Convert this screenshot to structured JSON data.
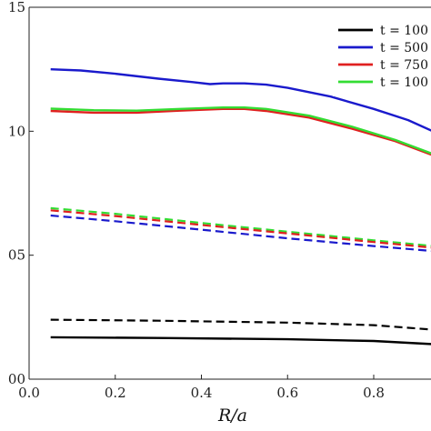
{
  "chart_data": {
    "type": "line",
    "title": "",
    "xlabel": "R/a",
    "ylabel": "",
    "xlim": [
      0,
      0.95
    ],
    "ylim": [
      0,
      1.5
    ],
    "x_ticks": [
      0,
      0.2,
      0.4,
      0.6,
      0.8
    ],
    "x_tick_labels": [
      "0.0",
      "0.2",
      "0.4",
      "0.6",
      "0.8"
    ],
    "y_ticks": [
      0,
      0.5,
      1.0,
      1.5
    ],
    "y_tick_labels": [
      "00",
      "05",
      "10",
      "15"
    ],
    "grid": false,
    "legend_position": "top-right",
    "legend": [
      {
        "label": "t = 100",
        "color": "#000000"
      },
      {
        "label": "t = 500",
        "color": "#1a1acc"
      },
      {
        "label": "t = 750",
        "color": "#e02020"
      },
      {
        "label": "t = 100",
        "color": "#33dd33"
      }
    ],
    "series": [
      {
        "legend_index": 1,
        "color": "#1a1acc",
        "dash": false,
        "x": [
          0.05,
          0.12,
          0.2,
          0.3,
          0.38,
          0.42,
          0.45,
          0.5,
          0.55,
          0.6,
          0.7,
          0.8,
          0.88,
          0.95
        ],
        "y": [
          1.25,
          1.245,
          1.232,
          1.212,
          1.198,
          1.19,
          1.193,
          1.193,
          1.188,
          1.175,
          1.14,
          1.09,
          1.045,
          0.99
        ]
      },
      {
        "legend_index": 2,
        "color": "#e02020",
        "dash": false,
        "x": [
          0.05,
          0.15,
          0.25,
          0.35,
          0.45,
          0.5,
          0.55,
          0.65,
          0.75,
          0.85,
          0.95
        ],
        "y": [
          1.082,
          1.075,
          1.075,
          1.083,
          1.09,
          1.09,
          1.082,
          1.055,
          1.01,
          0.96,
          0.895
        ]
      },
      {
        "legend_index": 3,
        "color": "#33dd33",
        "dash": false,
        "x": [
          0.05,
          0.15,
          0.25,
          0.35,
          0.45,
          0.5,
          0.55,
          0.65,
          0.75,
          0.85,
          0.95
        ],
        "y": [
          1.091,
          1.085,
          1.083,
          1.09,
          1.096,
          1.096,
          1.09,
          1.063,
          1.018,
          0.965,
          0.9
        ]
      },
      {
        "legend_index": 3,
        "color": "#33dd33",
        "dash": true,
        "x": [
          0.05,
          0.2,
          0.4,
          0.6,
          0.8,
          0.95
        ],
        "y": [
          0.69,
          0.667,
          0.63,
          0.595,
          0.56,
          0.535
        ]
      },
      {
        "legend_index": 2,
        "color": "#e02020",
        "dash": true,
        "x": [
          0.05,
          0.2,
          0.4,
          0.6,
          0.8,
          0.95
        ],
        "y": [
          0.681,
          0.658,
          0.622,
          0.588,
          0.553,
          0.528
        ]
      },
      {
        "legend_index": 1,
        "color": "#1a1acc",
        "dash": true,
        "x": [
          0.05,
          0.2,
          0.4,
          0.6,
          0.8,
          0.95
        ],
        "y": [
          0.66,
          0.637,
          0.603,
          0.568,
          0.537,
          0.515
        ]
      },
      {
        "legend_index": 0,
        "color": "#000000",
        "dash": true,
        "x": [
          0.05,
          0.3,
          0.6,
          0.8,
          0.95
        ],
        "y": [
          0.24,
          0.236,
          0.228,
          0.218,
          0.198
        ]
      },
      {
        "legend_index": 0,
        "color": "#000000",
        "dash": false,
        "x": [
          0.05,
          0.3,
          0.6,
          0.8,
          0.95
        ],
        "y": [
          0.169,
          0.166,
          0.161,
          0.154,
          0.14
        ]
      }
    ]
  }
}
